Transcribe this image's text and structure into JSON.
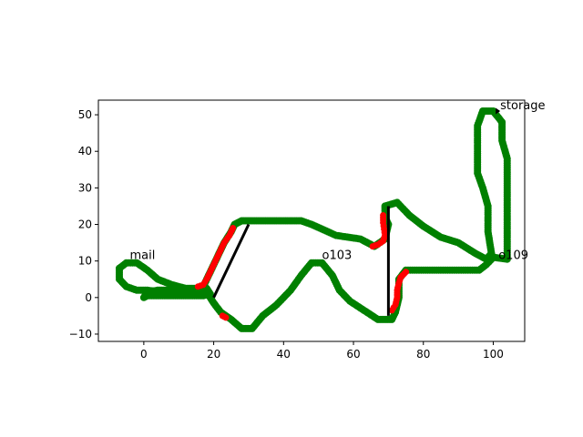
{
  "chart_data": {
    "type": "scatter",
    "title": "",
    "xlabel": "",
    "ylabel": "",
    "xlim": [
      -13,
      109
    ],
    "ylim": [
      -12,
      54
    ],
    "xticks": [
      0,
      20,
      40,
      60,
      80,
      100
    ],
    "yticks": [
      -10,
      0,
      10,
      20,
      30,
      40,
      50
    ],
    "grid": false,
    "legend": false,
    "colors": {
      "normal": "#008000",
      "highlight": "#ff0000",
      "segment": "#000000"
    },
    "annotations": [
      {
        "text": "mail",
        "x": -4,
        "y": 10.5
      },
      {
        "text": "o103",
        "x": 51,
        "y": 10.5
      },
      {
        "text": "o109",
        "x": 101.5,
        "y": 10.5
      },
      {
        "text": "storage",
        "x": 102,
        "y": 51.5
      }
    ],
    "segments": [
      {
        "x": [
          20,
          30
        ],
        "y": [
          0,
          20
        ]
      },
      {
        "x": [
          70,
          70
        ],
        "y": [
          -5,
          25
        ]
      }
    ],
    "arrow": {
      "x": [
        101,
        102
      ],
      "y": [
        51,
        51
      ]
    },
    "path": [
      [
        -7,
        8
      ],
      [
        -5,
        9.5
      ],
      [
        -2,
        9.5
      ],
      [
        1,
        7.5
      ],
      [
        4,
        5
      ],
      [
        8,
        3.5
      ],
      [
        12,
        2.5
      ],
      [
        18,
        2.5
      ],
      [
        19,
        1
      ],
      [
        17,
        0.5
      ],
      [
        12,
        0.5
      ],
      [
        6,
        0.5
      ],
      [
        1,
        0.5
      ],
      [
        0,
        0
      ],
      [
        1,
        1.5
      ],
      [
        4,
        2
      ],
      [
        8,
        2
      ],
      [
        12,
        2
      ],
      [
        14,
        2
      ],
      [
        18,
        1.5
      ],
      [
        20,
        -1.5
      ],
      [
        22,
        -4
      ],
      [
        25,
        -6
      ],
      [
        28,
        -8.5
      ],
      [
        31,
        -8.5
      ],
      [
        34,
        -5
      ],
      [
        38,
        -2
      ],
      [
        42,
        2
      ],
      [
        45,
        6
      ],
      [
        48,
        9.5
      ],
      [
        51,
        9.5
      ],
      [
        54,
        6
      ],
      [
        56,
        2
      ],
      [
        59,
        -1
      ],
      [
        63,
        -3.5
      ],
      [
        67,
        -6
      ],
      [
        71,
        -6
      ],
      [
        72,
        -4
      ],
      [
        73,
        0
      ],
      [
        73,
        5
      ],
      [
        75,
        7.5
      ],
      [
        85,
        7.5
      ],
      [
        96,
        7.5
      ],
      [
        98,
        9
      ],
      [
        100,
        11
      ],
      [
        104,
        10.5
      ],
      [
        104,
        20
      ],
      [
        104,
        30
      ],
      [
        104,
        38
      ],
      [
        102.5,
        43
      ],
      [
        102.5,
        48
      ],
      [
        100,
        51
      ],
      [
        97,
        51
      ],
      [
        95.5,
        47
      ],
      [
        95.5,
        40
      ],
      [
        95.5,
        34
      ],
      [
        97,
        30
      ],
      [
        98.5,
        25
      ],
      [
        98.5,
        18
      ],
      [
        99.5,
        12
      ],
      [
        98,
        10.5
      ],
      [
        95,
        12
      ],
      [
        90,
        15
      ],
      [
        85,
        16.5
      ],
      [
        80,
        19.5
      ],
      [
        76,
        22.5
      ],
      [
        72.5,
        26
      ],
      [
        69,
        25
      ],
      [
        69,
        22
      ],
      [
        70,
        20
      ],
      [
        69,
        16
      ],
      [
        66,
        14
      ],
      [
        62,
        16
      ],
      [
        55,
        17
      ],
      [
        48,
        20
      ],
      [
        45,
        21
      ],
      [
        38,
        21
      ],
      [
        31,
        21
      ],
      [
        28,
        21
      ],
      [
        26,
        20
      ],
      [
        25,
        18
      ],
      [
        23,
        15
      ],
      [
        21,
        11
      ],
      [
        19,
        7
      ],
      [
        17,
        3
      ],
      [
        14,
        2
      ],
      [
        10,
        1.5
      ],
      [
        5,
        1.5
      ],
      [
        1,
        2
      ],
      [
        -2,
        2
      ],
      [
        -5,
        3
      ],
      [
        -7,
        5
      ],
      [
        -7,
        8
      ]
    ],
    "highlight_segments": [
      [
        [
          15.5,
          3
        ],
        [
          17,
          3.5
        ],
        [
          18,
          5
        ],
        [
          19,
          7
        ],
        [
          20,
          9
        ],
        [
          21,
          11
        ],
        [
          22,
          13
        ],
        [
          23,
          15
        ],
        [
          24.5,
          17
        ],
        [
          25.5,
          19
        ]
      ],
      [
        [
          22.5,
          -5
        ],
        [
          23.5,
          -5.5
        ]
      ],
      [
        [
          65.5,
          14
        ],
        [
          67,
          14.5
        ],
        [
          68.5,
          15.5
        ],
        [
          69,
          17
        ],
        [
          68.5,
          20.5
        ],
        [
          68.5,
          22.5
        ]
      ],
      [
        [
          71,
          -3.5
        ],
        [
          72,
          -2
        ],
        [
          72.5,
          0
        ],
        [
          72.5,
          2
        ],
        [
          73,
          4
        ],
        [
          73.5,
          5.5
        ],
        [
          75,
          7
        ]
      ]
    ]
  }
}
